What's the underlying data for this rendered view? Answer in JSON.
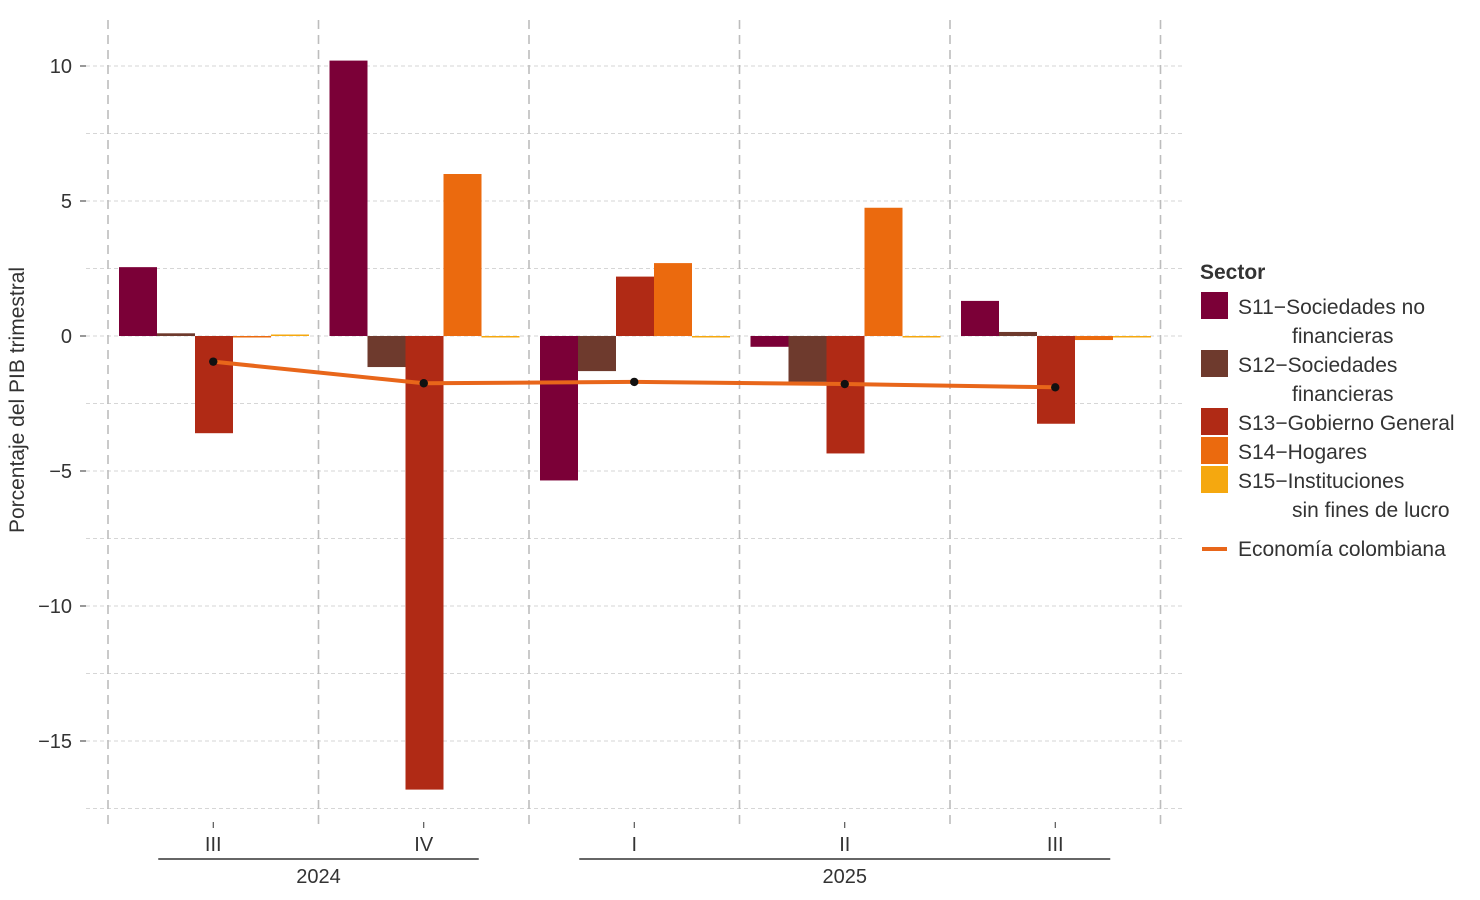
{
  "chart_data": {
    "type": "bar",
    "ylabel": "Porcentaje del PIB trimestral",
    "ylim": [
      -17.5,
      11.5
    ],
    "yticks": [
      10,
      5,
      0,
      -5,
      -10,
      -15
    ],
    "ytick_labels": [
      "10",
      "5",
      "0",
      "−5",
      "−10",
      "−15"
    ],
    "categories": [
      "III",
      "IV",
      "I",
      "II",
      "III"
    ],
    "year_groups": [
      {
        "label": "2024",
        "first": 0,
        "last": 1
      },
      {
        "label": "2025",
        "first": 2,
        "last": 4
      }
    ],
    "legend": {
      "title": "Sector",
      "position": "right"
    },
    "grid": true,
    "series": [
      {
        "name": "S11−Sociedades no financieras",
        "label_lines": [
          "S11−Sociedades no",
          "financieras"
        ],
        "color": "#7B0037",
        "values": [
          2.55,
          10.2,
          -5.35,
          -0.4,
          1.3
        ]
      },
      {
        "name": "S12−Sociedades financieras",
        "label_lines": [
          "S12−Sociedades",
          "financieras"
        ],
        "color": "#6E3A2D",
        "values": [
          0.1,
          -1.15,
          -1.3,
          -1.7,
          0.15
        ]
      },
      {
        "name": "S13−Gobierno General",
        "label_lines": [
          "S13−Gobierno General"
        ],
        "color": "#B02A15",
        "values": [
          -3.6,
          -16.8,
          2.2,
          -4.35,
          -3.25
        ]
      },
      {
        "name": "S14−Hogares",
        "label_lines": [
          "S14−Hogares"
        ],
        "color": "#EB6A0E",
        "values": [
          -0.05,
          6.0,
          2.7,
          4.75,
          -0.15
        ]
      },
      {
        "name": "S15−Instituciones sin fines de lucro",
        "label_lines": [
          "S15−Instituciones",
          "sin fines de lucro"
        ],
        "color": "#F5A80F",
        "values": [
          0.05,
          -0.05,
          -0.05,
          -0.02,
          -0.03
        ]
      }
    ],
    "line": {
      "name": "Economía colombiana",
      "color": "#E8661A",
      "values": [
        -0.95,
        -1.75,
        -1.7,
        -1.78,
        -1.9
      ]
    }
  }
}
